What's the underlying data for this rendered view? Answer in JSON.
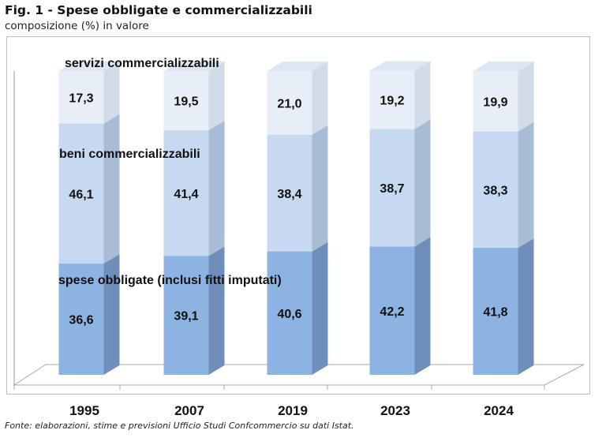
{
  "chart_data": {
    "type": "bar",
    "stacked": true,
    "style": "3d",
    "title": "Fig. 1 - Spese obbligate e commercializzabili",
    "subtitle": "composizione (%) in valore",
    "categories": [
      "1995",
      "2007",
      "2019",
      "2023",
      "2024"
    ],
    "series": [
      {
        "name": "spese obbligate (inclusi fitti imputati)",
        "values": [
          36.6,
          39.1,
          40.6,
          42.2,
          41.8
        ],
        "color": "#8db3e2"
      },
      {
        "name": "beni commercializzabili",
        "values": [
          46.1,
          41.4,
          38.4,
          38.7,
          38.3
        ],
        "color": "#c6d9f1"
      },
      {
        "name": "servizi commercializzabili",
        "values": [
          17.3,
          19.5,
          21.0,
          19.2,
          19.9
        ],
        "color": "#e7eef8"
      }
    ],
    "value_labels": [
      [
        "36,6",
        "39,1",
        "40,6",
        "42,2",
        "41,8"
      ],
      [
        "46,1",
        "41,4",
        "38,4",
        "38,7",
        "38,3"
      ],
      [
        "17,3",
        "19,5",
        "21,0",
        "19,2",
        "19,9"
      ]
    ],
    "ylim": [
      0,
      100
    ],
    "grid": false,
    "legend": "inline labels"
  },
  "source": "Fonte: elaborazioni, stime e previsioni Ufficio Studi Confcommercio su dati Istat."
}
